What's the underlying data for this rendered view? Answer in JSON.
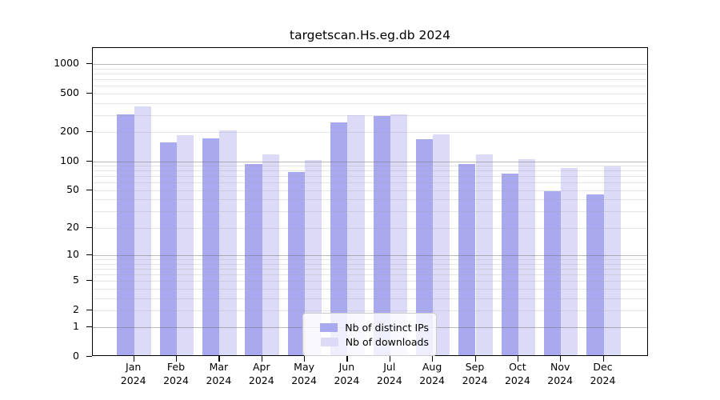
{
  "title": "targetscan.Hs.eg.db 2024",
  "chart_data": {
    "type": "bar",
    "title": "targetscan.Hs.eg.db 2024",
    "categories": [
      "Jan",
      "Feb",
      "Mar",
      "Apr",
      "May",
      "Jun",
      "Jul",
      "Aug",
      "Sep",
      "Oct",
      "Nov",
      "Dec"
    ],
    "year_label": "2024",
    "series": [
      {
        "name": "Nb of distinct IPs",
        "color": "#a9a9f0",
        "values": [
          292,
          150,
          165,
          90,
          75,
          243,
          283,
          164,
          90,
          72,
          47,
          44
        ]
      },
      {
        "name": "Nb of downloads",
        "color": "#dbdbf8",
        "values": [
          356,
          178,
          200,
          114,
          99,
          288,
          294,
          183,
          114,
          102,
          82,
          85
        ]
      }
    ],
    "yscale": "log1p",
    "ylim": [
      0,
      1466
    ],
    "yticks": [
      0,
      1,
      2,
      5,
      10,
      20,
      50,
      100,
      200,
      500,
      1000
    ],
    "grid": {
      "major": [
        1,
        10,
        100,
        1000
      ],
      "minor": [
        2,
        3,
        4,
        5,
        6,
        7,
        8,
        9,
        20,
        30,
        40,
        50,
        60,
        70,
        80,
        90,
        200,
        300,
        400,
        500,
        600,
        700,
        800,
        900
      ]
    },
    "legend_position": "bottom-center",
    "xlabel": "",
    "ylabel": ""
  }
}
